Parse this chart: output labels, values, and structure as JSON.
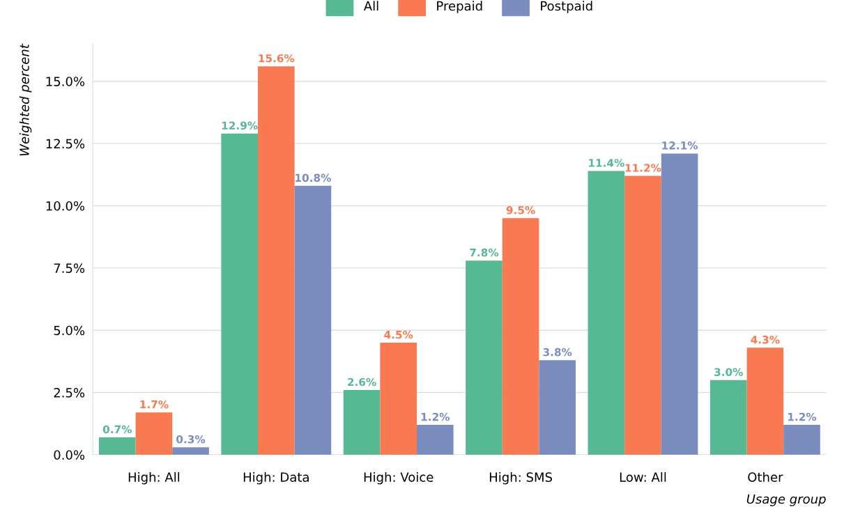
{
  "chart_data": {
    "type": "bar",
    "xlabel": "Usage group",
    "ylabel": "Weighted percent",
    "categories": [
      "High: All",
      "High: Data",
      "High: Voice",
      "High: SMS",
      "Low: All",
      "Other"
    ],
    "series": [
      {
        "name": "All",
        "color": "#57b894",
        "values": [
          0.7,
          12.9,
          2.6,
          7.8,
          11.4,
          3.0
        ],
        "value_labels": [
          "0.7%",
          "12.9%",
          "2.6%",
          "7.8%",
          "11.4%",
          "3.0%"
        ]
      },
      {
        "name": "Prepaid",
        "color": "#f97a50",
        "values": [
          1.7,
          15.6,
          4.5,
          9.5,
          11.2,
          4.3
        ],
        "value_labels": [
          "1.7%",
          "15.6%",
          "4.5%",
          "9.5%",
          "11.2%",
          "4.3%"
        ]
      },
      {
        "name": "Postpaid",
        "color": "#7b8dbf",
        "values": [
          0.3,
          10.8,
          1.2,
          3.8,
          12.1,
          1.2
        ],
        "value_labels": [
          "0.3%",
          "10.8%",
          "1.2%",
          "3.8%",
          "12.1%",
          "1.2%"
        ]
      }
    ],
    "ylim": [
      0,
      16.5
    ],
    "yticks": [
      {
        "value": 0,
        "label": "0.0%"
      },
      {
        "value": 2.5,
        "label": "2.5%"
      },
      {
        "value": 5,
        "label": "5.0%"
      },
      {
        "value": 7.5,
        "label": "7.5%"
      },
      {
        "value": 10,
        "label": "10.0%"
      },
      {
        "value": 12.5,
        "label": "12.5%"
      },
      {
        "value": 15,
        "label": "15.0%"
      }
    ],
    "grid": "y",
    "legend": "top"
  }
}
